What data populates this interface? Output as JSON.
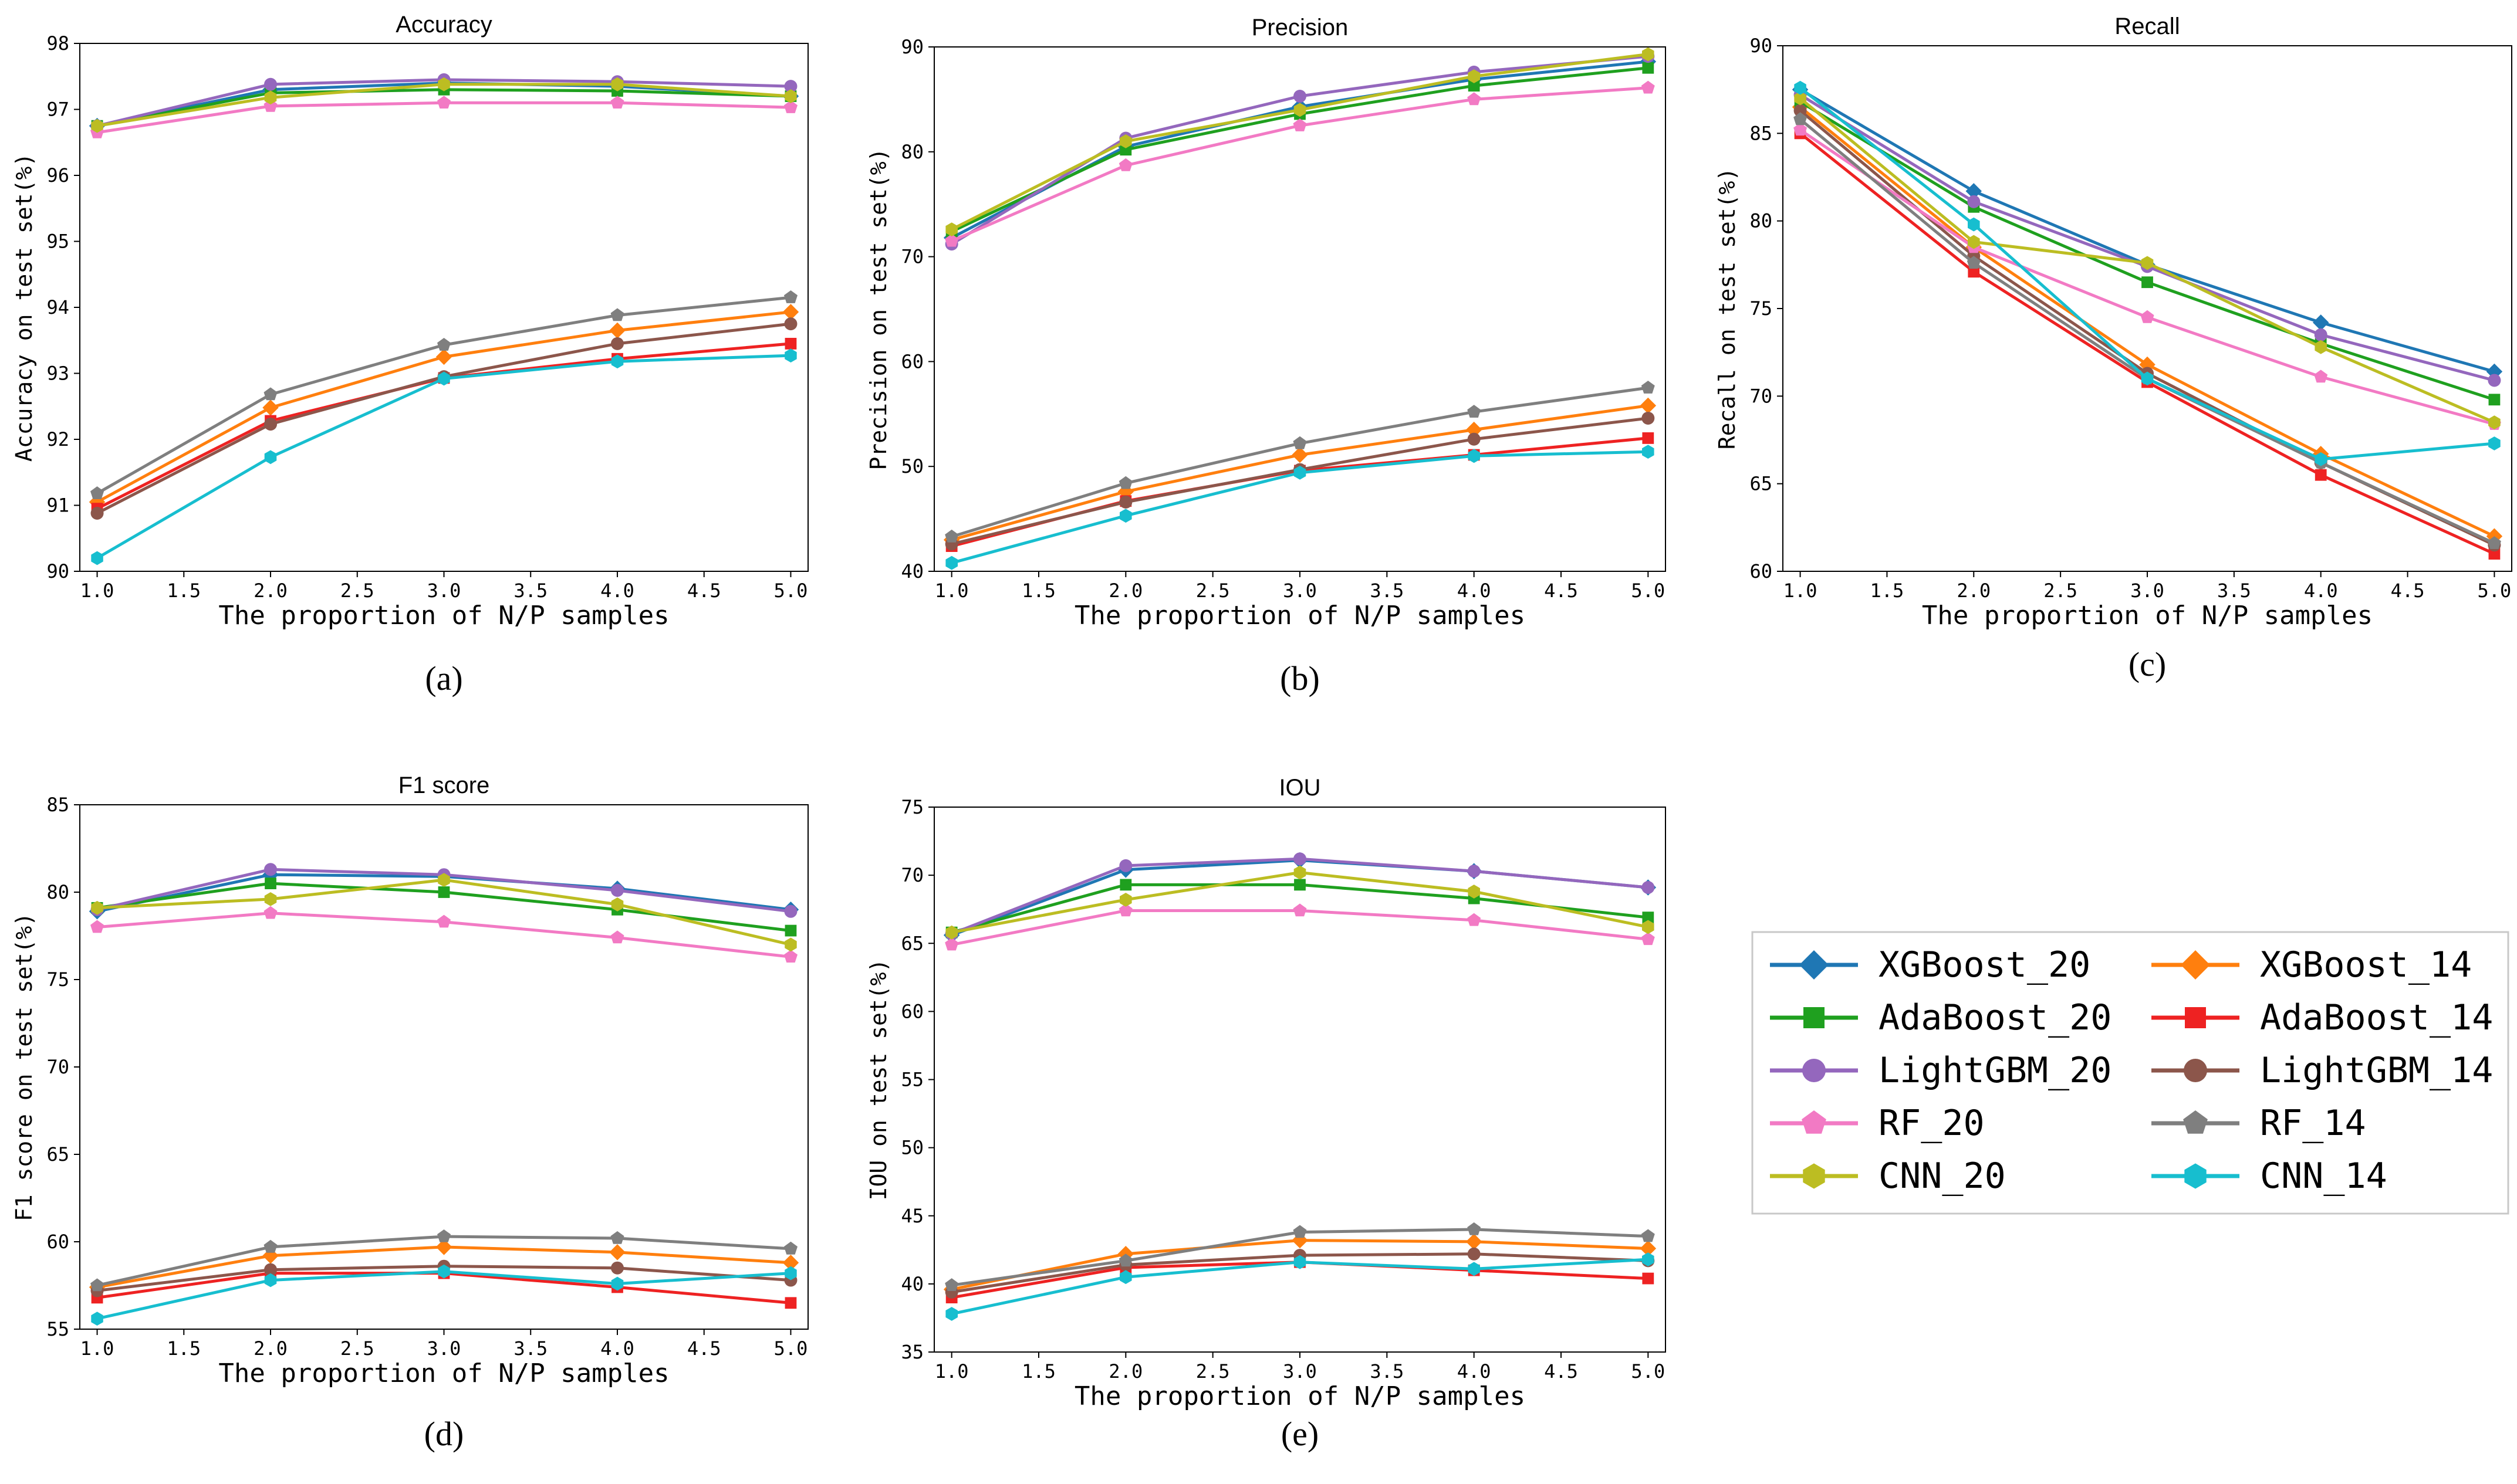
{
  "colors": {
    "XGBoost_20": "#1f77b4",
    "XGBoost_14": "#ff7f0e",
    "AdaBoost_20": "#1fa01f",
    "AdaBoost_14": "#ee2222",
    "LightGBM_20": "#9467bd",
    "LightGBM_14": "#8c564b",
    "RF_20": "#f27ac4",
    "RF_14": "#7f7f7f",
    "CNN_20": "#bcbd22",
    "CNN_14": "#17becf"
  },
  "legend": {
    "entries": [
      {
        "name": "XGBoost_20",
        "marker": "diamond"
      },
      {
        "name": "XGBoost_14",
        "marker": "diamond"
      },
      {
        "name": "AdaBoost_20",
        "marker": "square"
      },
      {
        "name": "AdaBoost_14",
        "marker": "square"
      },
      {
        "name": "LightGBM_20",
        "marker": "circle"
      },
      {
        "name": "LightGBM_14",
        "marker": "circle"
      },
      {
        "name": "RF_20",
        "marker": "pentagon"
      },
      {
        "name": "RF_14",
        "marker": "pentagon"
      },
      {
        "name": "CNN_20",
        "marker": "hexagon"
      },
      {
        "name": "CNN_14",
        "marker": "hexagon"
      }
    ]
  },
  "chart_data": [
    {
      "type": "line",
      "panel_label": "(a)",
      "title": "Accuracy",
      "xlabel": "The proportion of N/P samples",
      "ylabel": "Accuracy on test set(%)",
      "x": [
        1.0,
        2.0,
        3.0,
        4.0,
        5.0
      ],
      "xlim": [
        0.9,
        5.1
      ],
      "ylim": [
        90,
        98
      ],
      "xticks": [
        "1.0",
        "1.5",
        "2.0",
        "2.5",
        "3.0",
        "3.5",
        "4.0",
        "4.5",
        "5.0"
      ],
      "yticks": [
        "90",
        "91",
        "92",
        "93",
        "94",
        "95",
        "96",
        "97",
        "98"
      ],
      "grid": false,
      "series": [
        {
          "name": "XGBoost_20",
          "values": [
            96.75,
            97.3,
            97.4,
            97.35,
            97.2
          ]
        },
        {
          "name": "XGBoost_14",
          "values": [
            91.05,
            92.48,
            93.25,
            93.65,
            93.93
          ]
        },
        {
          "name": "AdaBoost_20",
          "values": [
            96.75,
            97.25,
            97.3,
            97.28,
            97.2
          ]
        },
        {
          "name": "AdaBoost_14",
          "values": [
            90.95,
            92.28,
            92.93,
            93.22,
            93.45
          ]
        },
        {
          "name": "LightGBM_20",
          "values": [
            96.75,
            97.38,
            97.45,
            97.42,
            97.35
          ]
        },
        {
          "name": "LightGBM_14",
          "values": [
            90.88,
            92.23,
            92.95,
            93.45,
            93.75
          ]
        },
        {
          "name": "RF_20",
          "values": [
            96.65,
            97.05,
            97.1,
            97.1,
            97.03
          ]
        },
        {
          "name": "RF_14",
          "values": [
            91.18,
            92.68,
            93.43,
            93.88,
            94.15
          ]
        },
        {
          "name": "CNN_20",
          "values": [
            96.75,
            97.18,
            97.38,
            97.38,
            97.2
          ]
        },
        {
          "name": "CNN_14",
          "values": [
            90.2,
            91.73,
            92.92,
            93.18,
            93.27
          ]
        }
      ]
    },
    {
      "type": "line",
      "panel_label": "(b)",
      "title": "Precision",
      "xlabel": "The proportion of N/P samples",
      "ylabel": "Precision on test set(%)",
      "x": [
        1.0,
        2.0,
        3.0,
        4.0,
        5.0
      ],
      "xlim": [
        0.9,
        5.1
      ],
      "ylim": [
        40,
        90
      ],
      "xticks": [
        "1.0",
        "1.5",
        "2.0",
        "2.5",
        "3.0",
        "3.5",
        "4.0",
        "4.5",
        "5.0"
      ],
      "yticks": [
        "40",
        "50",
        "60",
        "70",
        "80",
        "90"
      ],
      "grid": false,
      "series": [
        {
          "name": "XGBoost_20",
          "values": [
            71.8,
            80.5,
            84.3,
            86.9,
            88.6
          ]
        },
        {
          "name": "XGBoost_14",
          "values": [
            43.0,
            47.6,
            51.1,
            53.5,
            55.8
          ]
        },
        {
          "name": "AdaBoost_20",
          "values": [
            72.4,
            80.2,
            83.6,
            86.3,
            88.0
          ]
        },
        {
          "name": "AdaBoost_14",
          "values": [
            42.4,
            46.7,
            49.6,
            51.1,
            52.7
          ]
        },
        {
          "name": "LightGBM_20",
          "values": [
            71.2,
            81.3,
            85.3,
            87.6,
            89.1
          ]
        },
        {
          "name": "LightGBM_14",
          "values": [
            42.6,
            46.6,
            49.7,
            52.6,
            54.6
          ]
        },
        {
          "name": "RF_20",
          "values": [
            71.5,
            78.7,
            82.5,
            85.0,
            86.1
          ]
        },
        {
          "name": "RF_14",
          "values": [
            43.3,
            48.4,
            52.2,
            55.2,
            57.5
          ]
        },
        {
          "name": "CNN_20",
          "values": [
            72.6,
            81.0,
            84.0,
            87.2,
            89.3
          ]
        },
        {
          "name": "CNN_14",
          "values": [
            40.8,
            45.3,
            49.4,
            51.0,
            51.4
          ]
        }
      ]
    },
    {
      "type": "line",
      "panel_label": "(c)",
      "title": "Recall",
      "xlabel": "The proportion of N/P samples",
      "ylabel": "Recall on test set(%)",
      "x": [
        1.0,
        2.0,
        3.0,
        4.0,
        5.0
      ],
      "xlim": [
        0.9,
        5.1
      ],
      "ylim": [
        60,
        90
      ],
      "xticks": [
        "1.0",
        "1.5",
        "2.0",
        "2.5",
        "3.0",
        "3.5",
        "4.0",
        "4.5",
        "5.0"
      ],
      "yticks": [
        "60",
        "65",
        "70",
        "75",
        "80",
        "85",
        "90"
      ],
      "grid": false,
      "series": [
        {
          "name": "XGBoost_20",
          "values": [
            87.5,
            81.7,
            77.5,
            74.2,
            71.4
          ]
        },
        {
          "name": "XGBoost_14",
          "values": [
            86.5,
            78.5,
            71.8,
            66.7,
            62.0
          ]
        },
        {
          "name": "AdaBoost_20",
          "values": [
            86.8,
            80.8,
            76.5,
            73.0,
            69.8
          ]
        },
        {
          "name": "AdaBoost_14",
          "values": [
            85.0,
            77.1,
            70.8,
            65.5,
            61.0
          ]
        },
        {
          "name": "LightGBM_20",
          "values": [
            87.2,
            81.1,
            77.4,
            73.5,
            70.9
          ]
        },
        {
          "name": "LightGBM_14",
          "values": [
            86.3,
            78.0,
            71.3,
            66.2,
            61.5
          ]
        },
        {
          "name": "RF_20",
          "values": [
            85.2,
            78.5,
            74.5,
            71.1,
            68.4
          ]
        },
        {
          "name": "RF_14",
          "values": [
            85.8,
            77.6,
            71.0,
            66.2,
            61.6
          ]
        },
        {
          "name": "CNN_20",
          "values": [
            87.0,
            78.8,
            77.6,
            72.8,
            68.5
          ]
        },
        {
          "name": "CNN_14",
          "values": [
            87.6,
            79.8,
            71.0,
            66.4,
            67.3
          ]
        }
      ]
    },
    {
      "type": "line",
      "panel_label": "(d)",
      "title": "F1 score",
      "xlabel": "The proportion of N/P samples",
      "ylabel": "F1 score on test set(%)",
      "x": [
        1.0,
        2.0,
        3.0,
        4.0,
        5.0
      ],
      "xlim": [
        0.9,
        5.1
      ],
      "ylim": [
        55,
        85
      ],
      "xticks": [
        "1.0",
        "1.5",
        "2.0",
        "2.5",
        "3.0",
        "3.5",
        "4.0",
        "4.5",
        "5.0"
      ],
      "yticks": [
        "55",
        "60",
        "65",
        "70",
        "75",
        "80",
        "85"
      ],
      "grid": false,
      "series": [
        {
          "name": "XGBoost_20",
          "values": [
            78.9,
            81.0,
            80.9,
            80.2,
            79.0
          ]
        },
        {
          "name": "XGBoost_14",
          "values": [
            57.4,
            59.2,
            59.7,
            59.4,
            58.8
          ]
        },
        {
          "name": "AdaBoost_20",
          "values": [
            79.1,
            80.5,
            80.0,
            79.0,
            77.8
          ]
        },
        {
          "name": "AdaBoost_14",
          "values": [
            56.8,
            58.2,
            58.2,
            57.4,
            56.5
          ]
        },
        {
          "name": "LightGBM_20",
          "values": [
            79.0,
            81.3,
            81.0,
            80.1,
            78.9
          ]
        },
        {
          "name": "LightGBM_14",
          "values": [
            57.2,
            58.4,
            58.6,
            58.5,
            57.8
          ]
        },
        {
          "name": "RF_20",
          "values": [
            78.0,
            78.8,
            78.3,
            77.4,
            76.3
          ]
        },
        {
          "name": "RF_14",
          "values": [
            57.5,
            59.7,
            60.3,
            60.2,
            59.6
          ]
        },
        {
          "name": "CNN_20",
          "values": [
            79.1,
            79.6,
            80.7,
            79.3,
            77.0
          ]
        },
        {
          "name": "CNN_14",
          "values": [
            55.6,
            57.8,
            58.3,
            57.6,
            58.2
          ]
        }
      ]
    },
    {
      "type": "line",
      "panel_label": "(e)",
      "title": "IOU",
      "xlabel": "The proportion of N/P samples",
      "ylabel": "IOU on test set(%)",
      "x": [
        1.0,
        2.0,
        3.0,
        4.0,
        5.0
      ],
      "xlim": [
        0.9,
        5.1
      ],
      "ylim": [
        35,
        75
      ],
      "xticks": [
        "1.0",
        "1.5",
        "2.0",
        "2.5",
        "3.0",
        "3.5",
        "4.0",
        "4.5",
        "5.0"
      ],
      "yticks": [
        "35",
        "40",
        "45",
        "50",
        "55",
        "60",
        "65",
        "70",
        "75"
      ],
      "grid": false,
      "series": [
        {
          "name": "XGBoost_20",
          "values": [
            65.6,
            70.4,
            71.1,
            70.3,
            69.1
          ]
        },
        {
          "name": "XGBoost_14",
          "values": [
            39.6,
            42.2,
            43.2,
            43.1,
            42.6
          ]
        },
        {
          "name": "AdaBoost_20",
          "values": [
            65.8,
            69.3,
            69.3,
            68.3,
            66.9
          ]
        },
        {
          "name": "AdaBoost_14",
          "values": [
            39.0,
            41.2,
            41.6,
            41.0,
            40.4
          ]
        },
        {
          "name": "LightGBM_20",
          "values": [
            65.7,
            70.7,
            71.2,
            70.3,
            69.1
          ]
        },
        {
          "name": "LightGBM_14",
          "values": [
            39.4,
            41.4,
            42.1,
            42.2,
            41.7
          ]
        },
        {
          "name": "RF_20",
          "values": [
            64.9,
            67.4,
            67.4,
            66.7,
            65.3
          ]
        },
        {
          "name": "RF_14",
          "values": [
            39.9,
            41.7,
            43.8,
            44.0,
            43.5
          ]
        },
        {
          "name": "CNN_20",
          "values": [
            65.8,
            68.2,
            70.2,
            68.8,
            66.2
          ]
        },
        {
          "name": "CNN_14",
          "values": [
            37.8,
            40.5,
            41.6,
            41.1,
            41.8
          ]
        }
      ]
    }
  ]
}
